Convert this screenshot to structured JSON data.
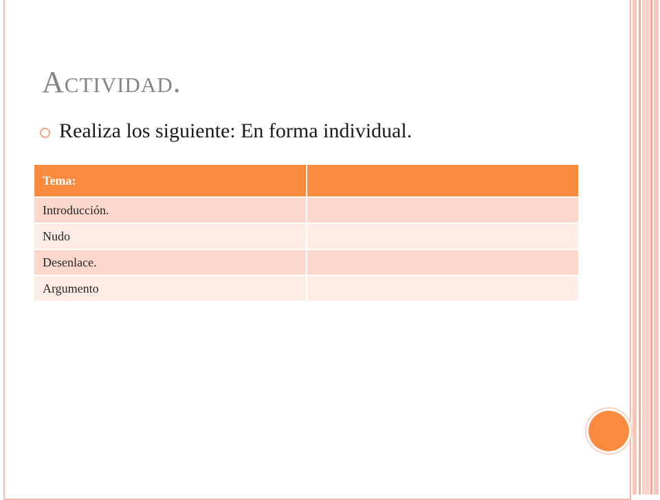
{
  "slide": {
    "title": "Actividad.",
    "bullet": "Realiza los siguiente: En forma individual."
  },
  "table": {
    "header": [
      "Tema:",
      ""
    ],
    "rows": [
      [
        "Introducción.",
        ""
      ],
      [
        "Nudo",
        ""
      ],
      [
        "Desenlace.",
        ""
      ],
      [
        "Argumento",
        ""
      ]
    ]
  },
  "colors": {
    "accent": "#f98b3f",
    "title": "#848484",
    "row_odd": "#fcd8cc",
    "row_even": "#fdece6",
    "frame": "#f6b7a7"
  }
}
